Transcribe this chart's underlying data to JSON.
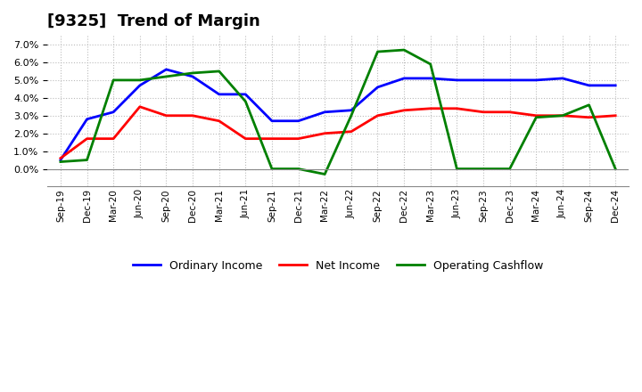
{
  "title": "[9325]  Trend of Margin",
  "x_labels": [
    "Sep-19",
    "Dec-19",
    "Mar-20",
    "Jun-20",
    "Sep-20",
    "Dec-20",
    "Mar-21",
    "Jun-21",
    "Sep-21",
    "Dec-21",
    "Mar-22",
    "Jun-22",
    "Sep-22",
    "Dec-22",
    "Mar-23",
    "Jun-23",
    "Sep-23",
    "Dec-23",
    "Mar-24",
    "Jun-24",
    "Sep-24",
    "Dec-24"
  ],
  "ordinary_income": [
    0.005,
    0.028,
    0.032,
    0.047,
    0.056,
    0.052,
    0.042,
    0.042,
    0.027,
    0.027,
    0.032,
    0.033,
    0.046,
    0.051,
    0.051,
    0.05,
    0.05,
    0.05,
    0.05,
    0.051,
    0.047,
    0.047
  ],
  "net_income": [
    0.006,
    0.017,
    0.017,
    0.035,
    0.03,
    0.03,
    0.027,
    0.017,
    0.017,
    0.017,
    0.02,
    0.021,
    0.03,
    0.033,
    0.034,
    0.034,
    0.032,
    0.032,
    0.03,
    0.03,
    0.029,
    0.03
  ],
  "operating_cashflow": [
    0.004,
    0.005,
    0.05,
    0.05,
    0.052,
    0.054,
    0.055,
    0.038,
    0.0,
    0.0,
    -0.003,
    0.03,
    0.066,
    0.067,
    0.059,
    0.0,
    0.0,
    0.0,
    0.029,
    0.03,
    0.036,
    0.0
  ],
  "ordinary_income_color": "#0000ff",
  "net_income_color": "#ff0000",
  "operating_cashflow_color": "#008000",
  "ylim": [
    -0.01,
    0.075
  ],
  "yticks": [
    0.0,
    0.01,
    0.02,
    0.03,
    0.04,
    0.05,
    0.06,
    0.07
  ],
  "background_color": "#ffffff",
  "grid_color": "#bbbbbb",
  "title_fontsize": 13,
  "legend_labels": [
    "Ordinary Income",
    "Net Income",
    "Operating Cashflow"
  ]
}
